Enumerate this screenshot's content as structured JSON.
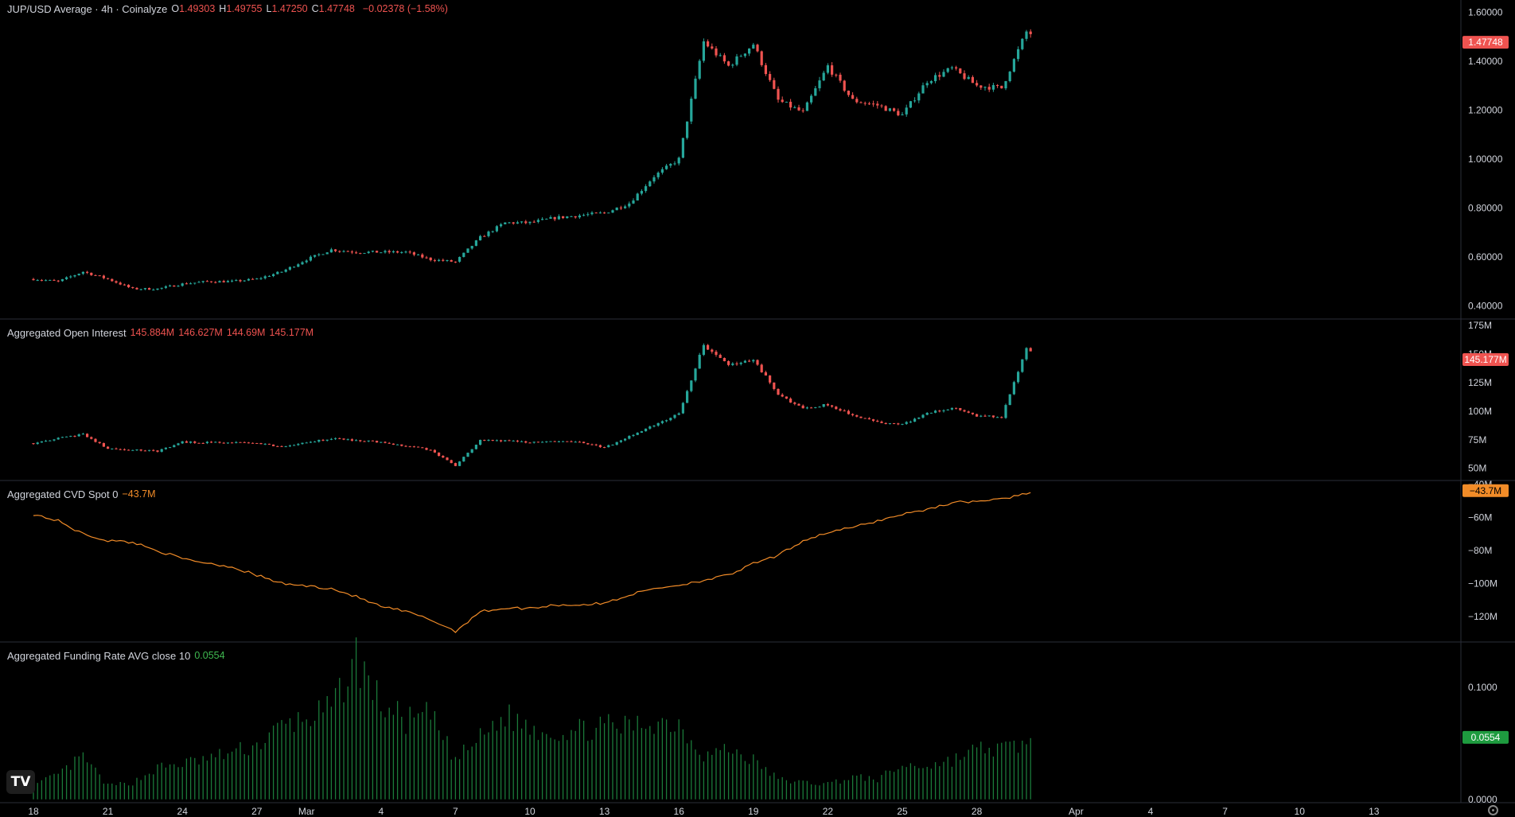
{
  "header": {
    "title": "JUP/USD Average · 4h · Coinalyze",
    "ohlc": [
      {
        "k": "O",
        "v": "1.49303"
      },
      {
        "k": "H",
        "v": "1.49755"
      },
      {
        "k": "L",
        "v": "1.47250"
      },
      {
        "k": "C",
        "v": "1.47748"
      }
    ],
    "change": "−0.02378 (−1.58%)"
  },
  "colors": {
    "up": "#26a69a",
    "down": "#ef5350",
    "cvd": "#f28c28",
    "funding": "#1b7a3a",
    "funding_badge": "#1e9b3f",
    "background": "#000000",
    "grid": "#2a2e39",
    "text": "#d1d4dc",
    "change": "#ef5350"
  },
  "x_axis": {
    "ticks": [
      "18",
      "21",
      "24",
      "27",
      "Mar",
      "4",
      "7",
      "10",
      "13",
      "16",
      "19",
      "22",
      "25",
      "28",
      "Apr",
      "4",
      "7",
      "10",
      "13"
    ]
  },
  "panes": [
    {
      "id": "price",
      "legend": "",
      "values": [],
      "price_badge": "1.47748",
      "axis_labels": [
        "1.60000",
        "1.40000",
        "1.20000",
        "1.00000",
        "0.80000",
        "0.60000",
        "0.40000"
      ]
    },
    {
      "id": "oi",
      "legend": "Aggregated Open Interest",
      "values": [
        "145.884M",
        "146.627M",
        "144.69M",
        "145.177M"
      ],
      "price_badge": "145.177M",
      "axis_labels": [
        "175M",
        "150M",
        "125M",
        "100M",
        "75M",
        "50M"
      ]
    },
    {
      "id": "cvd",
      "legend": "Aggregated CVD Spot 0",
      "values": [
        "−43.7M"
      ],
      "price_badge": "−43.7M",
      "axis_labels": [
        "−40M",
        "−60M",
        "−80M",
        "−100M",
        "−120M"
      ]
    },
    {
      "id": "funding",
      "legend": "Aggregated Funding Rate AVG close 10",
      "values": [
        "0.0554"
      ],
      "price_badge": "0.0554",
      "axis_labels": [
        "0.1000",
        "0.0554",
        "0.0000"
      ]
    }
  ],
  "chart_data": [
    {
      "type": "candlestick",
      "title": "JUP/USD Average · 4h · Coinalyze",
      "x_start": "Feb 18",
      "x_end": "Mar 30",
      "ylim": [
        0.35,
        1.65
      ],
      "anchors": [
        [
          "Feb 18",
          0.51
        ],
        [
          "Feb 19",
          0.5
        ],
        [
          "Feb 20",
          0.54
        ],
        [
          "Feb 21",
          0.51
        ],
        [
          "Feb 22",
          0.47
        ],
        [
          "Feb 23",
          0.47
        ],
        [
          "Feb 24",
          0.49
        ],
        [
          "Feb 25",
          0.5
        ],
        [
          "Feb 26",
          0.5
        ],
        [
          "Feb 27",
          0.51
        ],
        [
          "Feb 28",
          0.54
        ],
        [
          "Feb 29",
          0.59
        ],
        [
          "Mar 1",
          0.63
        ],
        [
          "Mar 2",
          0.62
        ],
        [
          "Mar 3",
          0.62
        ],
        [
          "Mar 4",
          0.62
        ],
        [
          "Mar 5",
          0.59
        ],
        [
          "Mar 6",
          0.58
        ],
        [
          "Mar 7",
          0.68
        ],
        [
          "Mar 8",
          0.74
        ],
        [
          "Mar 9",
          0.74
        ],
        [
          "Mar 10",
          0.76
        ],
        [
          "Mar 11",
          0.77
        ],
        [
          "Mar 12",
          0.78
        ],
        [
          "Mar 13",
          0.82
        ],
        [
          "Mar 14",
          0.93
        ],
        [
          "Mar 15",
          1.0
        ],
        [
          "Mar 16",
          1.48
        ],
        [
          "Mar 17",
          1.38
        ],
        [
          "Mar 18",
          1.47
        ],
        [
          "Mar 19",
          1.24
        ],
        [
          "Mar 20",
          1.19
        ],
        [
          "Mar 21",
          1.38
        ],
        [
          "Mar 22",
          1.24
        ],
        [
          "Mar 23",
          1.22
        ],
        [
          "Mar 24",
          1.18
        ],
        [
          "Mar 25",
          1.32
        ],
        [
          "Mar 26",
          1.37
        ],
        [
          "Mar 27",
          1.3
        ],
        [
          "Mar 28",
          1.29
        ],
        [
          "Mar 29",
          1.52
        ],
        [
          "Mar 30",
          1.478
        ]
      ],
      "last": {
        "open": 1.49303,
        "high": 1.49755,
        "low": 1.4725,
        "close": 1.47748
      }
    },
    {
      "type": "candlestick",
      "title": "Aggregated Open Interest",
      "ylim": [
        40,
        180
      ],
      "unit": "M",
      "anchors": [
        [
          "Feb 18",
          72
        ],
        [
          "Feb 20",
          80
        ],
        [
          "Feb 21",
          67
        ],
        [
          "Feb 23",
          65
        ],
        [
          "Feb 24",
          73
        ],
        [
          "Feb 27",
          72
        ],
        [
          "Feb 28",
          69
        ],
        [
          "Mar 1",
          76
        ],
        [
          "Mar 3",
          73
        ],
        [
          "Mar 5",
          66
        ],
        [
          "Mar 6",
          52
        ],
        [
          "Mar 7",
          75
        ],
        [
          "Mar 9",
          73
        ],
        [
          "Mar 11",
          73
        ],
        [
          "Mar 12",
          68
        ],
        [
          "Mar 13",
          78
        ],
        [
          "Mar 15",
          98
        ],
        [
          "Mar 16",
          158
        ],
        [
          "Mar 17",
          140
        ],
        [
          "Mar 18",
          145
        ],
        [
          "Mar 19",
          115
        ],
        [
          "Mar 20",
          102
        ],
        [
          "Mar 21",
          106
        ],
        [
          "Mar 22",
          96
        ],
        [
          "Mar 23",
          90
        ],
        [
          "Mar 24",
          88
        ],
        [
          "Mar 25",
          98
        ],
        [
          "Mar 26",
          103
        ],
        [
          "Mar 27",
          96
        ],
        [
          "Mar 28",
          95
        ],
        [
          "Mar 29",
          155
        ],
        [
          "Mar 30",
          145.177
        ]
      ],
      "last": {
        "open": 145.884,
        "high": 146.627,
        "low": 144.69,
        "close": 145.177
      }
    },
    {
      "type": "line",
      "title": "Aggregated CVD Spot 0",
      "ylim": [
        -135,
        -38
      ],
      "unit": "M",
      "anchors": [
        [
          "Feb 18",
          -58
        ],
        [
          "Feb 19",
          -62
        ],
        [
          "Feb 20",
          -70
        ],
        [
          "Feb 21",
          -74
        ],
        [
          "Feb 22",
          -75
        ],
        [
          "Feb 23",
          -80
        ],
        [
          "Feb 24",
          -85
        ],
        [
          "Feb 26",
          -90
        ],
        [
          "Feb 27",
          -95
        ],
        [
          "Feb 28",
          -100
        ],
        [
          "Mar 1",
          -103
        ],
        [
          "Mar 2",
          -108
        ],
        [
          "Mar 3",
          -114
        ],
        [
          "Mar 4",
          -117
        ],
        [
          "Mar 5",
          -122
        ],
        [
          "Mar 6",
          -129
        ],
        [
          "Mar 7",
          -117
        ],
        [
          "Mar 8",
          -115
        ],
        [
          "Mar 9",
          -115
        ],
        [
          "Mar 10",
          -113
        ],
        [
          "Mar 11",
          -113
        ],
        [
          "Mar 12",
          -112
        ],
        [
          "Mar 13",
          -107
        ],
        [
          "Mar 14",
          -103
        ],
        [
          "Mar 15",
          -101
        ],
        [
          "Mar 16",
          -98
        ],
        [
          "Mar 17",
          -95
        ],
        [
          "Mar 18",
          -88
        ],
        [
          "Mar 19",
          -83
        ],
        [
          "Mar 20",
          -74
        ],
        [
          "Mar 21",
          -69
        ],
        [
          "Mar 22",
          -66
        ],
        [
          "Mar 23",
          -62
        ],
        [
          "Mar 24",
          -58
        ],
        [
          "Mar 25",
          -55
        ],
        [
          "Mar 26",
          -51
        ],
        [
          "Mar 27",
          -50
        ],
        [
          "Mar 28",
          -49
        ],
        [
          "Mar 29",
          -45
        ],
        [
          "Mar 30",
          -43.7
        ]
      ]
    },
    {
      "type": "bar",
      "title": "Aggregated Funding Rate AVG close 10",
      "ylim": [
        -0.003,
        0.14
      ],
      "anchors": [
        [
          "Feb 18",
          0.012
        ],
        [
          "Feb 19",
          0.022
        ],
        [
          "Feb 20",
          0.038
        ],
        [
          "Feb 21",
          0.012
        ],
        [
          "Feb 22",
          0.015
        ],
        [
          "Feb 23",
          0.028
        ],
        [
          "Feb 24",
          0.032
        ],
        [
          "Feb 25",
          0.036
        ],
        [
          "Feb 26",
          0.042
        ],
        [
          "Feb 27",
          0.048
        ],
        [
          "Feb 28",
          0.065
        ],
        [
          "Mar 1",
          0.08
        ],
        [
          "Mar 2",
          0.127
        ],
        [
          "Mar 3",
          0.085
        ],
        [
          "Mar 4",
          0.07
        ],
        [
          "Mar 5",
          0.075
        ],
        [
          "Mar 6",
          0.035
        ],
        [
          "Mar 7",
          0.055
        ],
        [
          "Mar 8",
          0.075
        ],
        [
          "Mar 9",
          0.065
        ],
        [
          "Mar 10",
          0.06
        ],
        [
          "Mar 11",
          0.062
        ],
        [
          "Mar 12",
          0.065
        ],
        [
          "Mar 13",
          0.065
        ],
        [
          "Mar 14",
          0.07
        ],
        [
          "Mar 15",
          0.068
        ],
        [
          "Mar 16",
          0.04
        ],
        [
          "Mar 17",
          0.045
        ],
        [
          "Mar 18",
          0.035
        ],
        [
          "Mar 19",
          0.018
        ],
        [
          "Mar 20",
          0.015
        ],
        [
          "Mar 21",
          0.014
        ],
        [
          "Mar 22",
          0.02
        ],
        [
          "Mar 23",
          0.018
        ],
        [
          "Mar 24",
          0.03
        ],
        [
          "Mar 25",
          0.03
        ],
        [
          "Mar 26",
          0.035
        ],
        [
          "Mar 27",
          0.045
        ],
        [
          "Mar 28",
          0.045
        ],
        [
          "Mar 29",
          0.05
        ],
        [
          "Mar 30",
          0.0554
        ]
      ]
    }
  ]
}
